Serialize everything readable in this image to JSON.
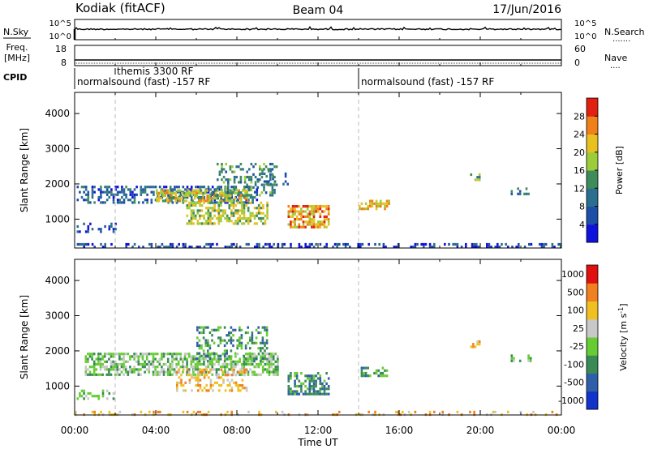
{
  "header": {
    "station": "Kodiak (fitACF)",
    "beam": "Beam 04",
    "date": "17/Jun/2016"
  },
  "noise_panel": {
    "left_label": "N.Sky",
    "right_label": "N.Search",
    "left_ticks": [
      "10^5",
      "10^0"
    ],
    "right_ticks": [
      "10^5",
      "10^0"
    ]
  },
  "freq_panel": {
    "left_label": "Freq. [MHz]",
    "right_label": "Nave",
    "left_ticks": [
      "18",
      "8"
    ],
    "right_ticks": [
      "60",
      "0"
    ]
  },
  "cpid": {
    "label": "CPID",
    "segments": [
      {
        "start_hour": 0.0,
        "text": "normalsound (fast) -157 RF"
      },
      {
        "start_hour": 2.0,
        "text": "themis 3300 RF"
      },
      {
        "start_hour": 14.0,
        "text": "normalsound (fast) -157 RF"
      }
    ]
  },
  "chart_data": [
    {
      "type": "heatmap",
      "title": "",
      "xlabel": "",
      "ylabel": "Slant Range [km]",
      "xlim": [
        0,
        24
      ],
      "ylim": [
        180,
        4600
      ],
      "y_ticks": [
        1000,
        2000,
        3000,
        4000
      ],
      "grid": false,
      "colorbar": {
        "label": "Power [dB]",
        "range": [
          0,
          32
        ],
        "ticks": [
          4,
          8,
          12,
          16,
          20,
          24,
          28
        ],
        "colors": [
          "#1111dd",
          "#1e4fa8",
          "#2a6f8f",
          "#3f8b5a",
          "#9ccc3a",
          "#e8c020",
          "#f0801a",
          "#e02010"
        ]
      },
      "clusters": [
        {
          "t0": 0.1,
          "t1": 9.0,
          "r0": 1500,
          "r1": 1950,
          "value": 8,
          "density": 0.45
        },
        {
          "t0": 4.0,
          "t1": 8.5,
          "r0": 1500,
          "r1": 1850,
          "value": 20,
          "density": 0.7
        },
        {
          "t0": 5.5,
          "t1": 9.5,
          "r0": 850,
          "r1": 1500,
          "value": 18,
          "density": 0.55
        },
        {
          "t0": 7.0,
          "t1": 10.0,
          "r0": 1700,
          "r1": 2600,
          "value": 12,
          "density": 0.35
        },
        {
          "t0": 9.0,
          "t1": 10.5,
          "r0": 2000,
          "r1": 2400,
          "value": 10,
          "density": 0.3
        },
        {
          "t0": 10.5,
          "t1": 12.5,
          "r0": 800,
          "r1": 1400,
          "value": 24,
          "density": 0.7
        },
        {
          "t0": 14.0,
          "t1": 15.5,
          "r0": 1300,
          "r1": 1550,
          "value": 22,
          "density": 0.6
        },
        {
          "t0": 0.1,
          "t1": 2.0,
          "r0": 650,
          "r1": 900,
          "value": 6,
          "density": 0.25
        },
        {
          "t0": 19.5,
          "t1": 20.0,
          "r0": 2100,
          "r1": 2300,
          "value": 16,
          "density": 0.5
        },
        {
          "t0": 21.5,
          "t1": 22.5,
          "r0": 1700,
          "r1": 1900,
          "value": 10,
          "density": 0.3
        },
        {
          "t0": 0.0,
          "t1": 24.0,
          "r0": 180,
          "r1": 320,
          "value": 5,
          "density": 0.35
        }
      ]
    },
    {
      "type": "heatmap",
      "title": "",
      "xlabel": "Time UT",
      "ylabel": "Slant Range [km]",
      "xlim": [
        0,
        24
      ],
      "ylim": [
        180,
        4600
      ],
      "x_ticks": [
        "00:00",
        "04:00",
        "08:00",
        "12:00",
        "16:00",
        "20:00",
        "00:00"
      ],
      "y_ticks": [
        1000,
        2000,
        3000,
        4000
      ],
      "grid": false,
      "colorbar": {
        "label": "Velocity [m s^-1]",
        "ticks": [
          "1000",
          "500",
          "100",
          "25",
          "-25",
          "-100",
          "-500",
          "-1000"
        ],
        "colors": [
          "#1133cc",
          "#2f5fa8",
          "#3a8a55",
          "#66cc33",
          "#c8c8c8",
          "#f0c020",
          "#f08020",
          "#e01010"
        ]
      },
      "clusters": [
        {
          "t0": 0.5,
          "t1": 10.0,
          "r0": 1300,
          "r1": 1950,
          "value": "25",
          "density": 0.6
        },
        {
          "t0": 5.0,
          "t1": 8.5,
          "r0": 900,
          "r1": 1500,
          "value": "-100",
          "density": 0.4
        },
        {
          "t0": 6.0,
          "t1": 9.5,
          "r0": 1700,
          "r1": 2700,
          "value": "100",
          "density": 0.3
        },
        {
          "t0": 10.5,
          "t1": 12.5,
          "r0": 800,
          "r1": 1400,
          "value": "100",
          "density": 0.55
        },
        {
          "t0": 14.0,
          "t1": 15.5,
          "r0": 1300,
          "r1": 1550,
          "value": "100",
          "density": 0.5
        },
        {
          "t0": 0.1,
          "t1": 2.0,
          "r0": 650,
          "r1": 900,
          "value": "25",
          "density": 0.3
        },
        {
          "t0": 19.5,
          "t1": 20.0,
          "r0": 2100,
          "r1": 2300,
          "value": "-100",
          "density": 0.5
        },
        {
          "t0": 21.5,
          "t1": 22.5,
          "r0": 1700,
          "r1": 1900,
          "value": "25",
          "density": 0.3
        },
        {
          "t0": 0.0,
          "t1": 24.0,
          "r0": 180,
          "r1": 300,
          "value": "-100",
          "density": 0.25
        }
      ]
    }
  ]
}
